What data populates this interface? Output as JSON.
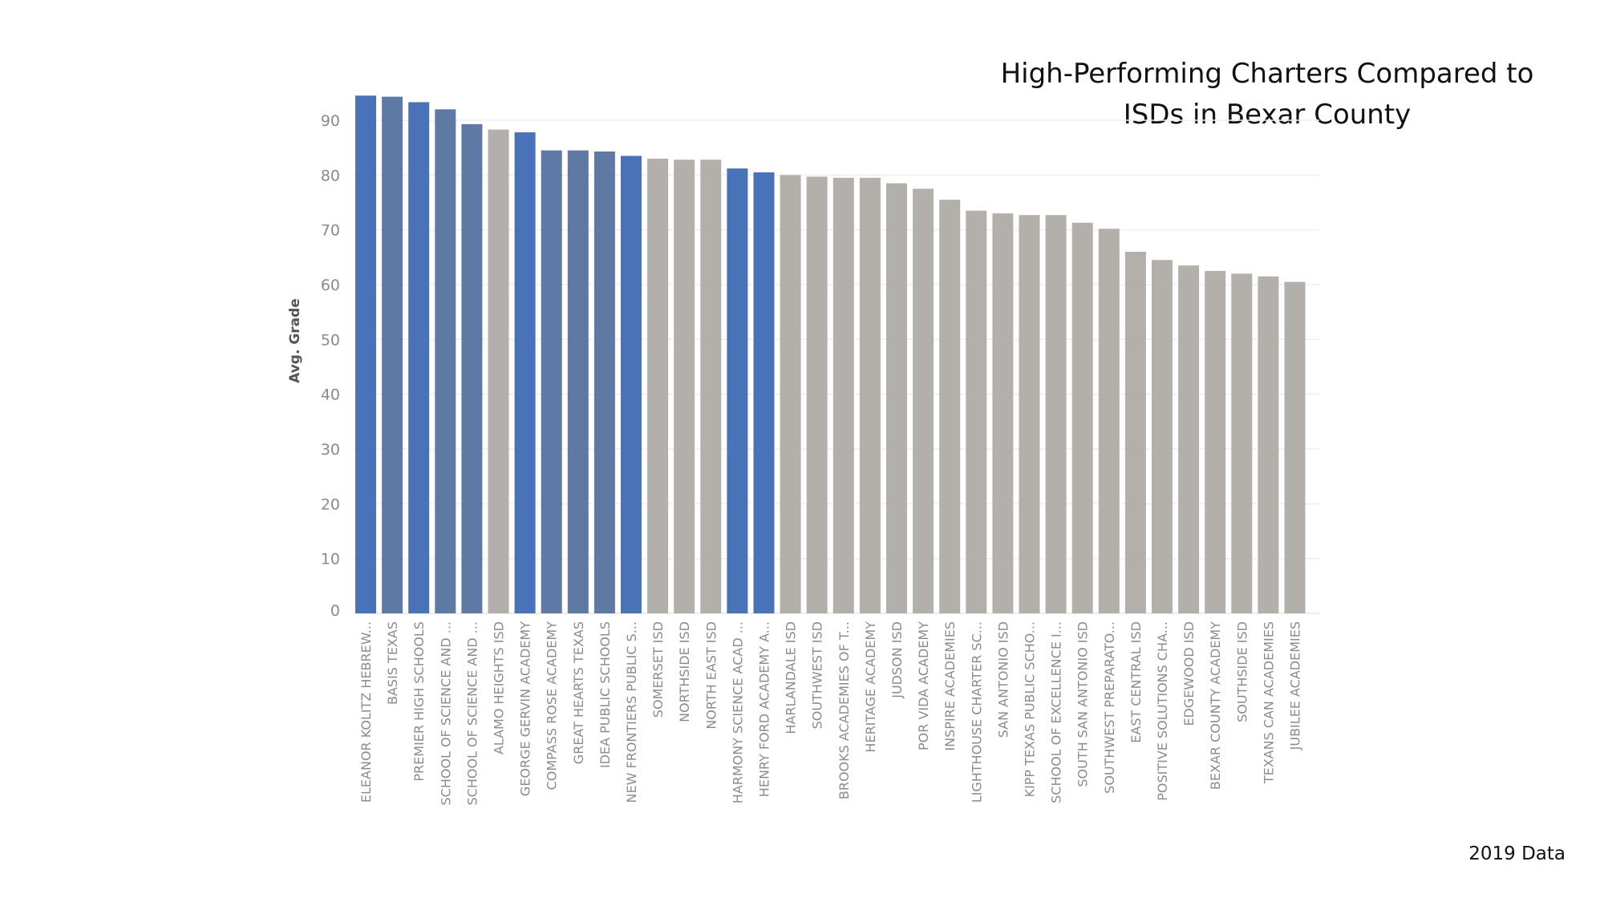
{
  "title_line1": "High-Performing Charters Compared to",
  "title_line2": "ISDs in Bexar County",
  "footnote": "2019 Data",
  "colors": {
    "highlight_blue": "#4a72b8",
    "highlight_slate": "#5e79a4",
    "other_gray": "#b3afab",
    "grid": "#eeeeee"
  },
  "chart_data": {
    "type": "bar",
    "ylabel": "Avg. Grade",
    "xlabel": "",
    "ylim": [
      0,
      95
    ],
    "yticks": [
      0,
      10,
      20,
      30,
      40,
      50,
      60,
      70,
      80,
      90
    ],
    "grid": "horizontal",
    "categories": [
      "ELEANOR KOLITZ HEBREW...",
      "BASIS TEXAS",
      "PREMIER HIGH SCHOOLS",
      "SCHOOL OF SCIENCE AND ...",
      "SCHOOL OF SCIENCE AND ...",
      "ALAMO HEIGHTS ISD",
      "GEORGE GERVIN ACADEMY",
      "COMPASS ROSE ACADEMY",
      "GREAT HEARTS TEXAS",
      "IDEA PUBLIC SCHOOLS",
      "NEW FRONTIERS PUBLIC S...",
      "SOMERSET ISD",
      "NORTHSIDE ISD",
      "NORTH EAST ISD",
      "HARMONY SCIENCE ACAD ...",
      "HENRY FORD ACADEMY A...",
      "HARLANDALE ISD",
      "SOUTHWEST ISD",
      "BROOKS ACADEMIES OF T...",
      "HERITAGE ACADEMY",
      "JUDSON ISD",
      "POR VIDA ACADEMY",
      "INSPIRE ACADEMIES",
      "LIGHTHOUSE CHARTER SC...",
      "SAN ANTONIO ISD",
      "KIPP TEXAS PUBLIC SCHO...",
      "SCHOOL OF EXCELLENCE I...",
      "SOUTH SAN ANTONIO ISD",
      "SOUTHWEST PREPARATO...",
      "EAST CENTRAL ISD",
      "POSITIVE SOLUTIONS CHA...",
      "EDGEWOOD ISD",
      "BEXAR COUNTY ACADEMY",
      "SOUTHSIDE ISD",
      "TEXANS CAN ACADEMIES",
      "JUBILEE ACADEMIES"
    ],
    "values": [
      94.5,
      94.3,
      93.3,
      92.0,
      89.3,
      88.3,
      87.8,
      84.5,
      84.5,
      84.3,
      83.5,
      83.0,
      82.8,
      82.8,
      81.2,
      80.5,
      80.0,
      79.7,
      79.5,
      79.5,
      78.5,
      77.5,
      75.5,
      73.5,
      73.0,
      72.7,
      72.7,
      71.3,
      70.2,
      66.0,
      64.5,
      63.5,
      62.5,
      62.0,
      61.5,
      60.5
    ],
    "bar_color_keys": [
      "highlight_blue",
      "highlight_slate",
      "highlight_blue",
      "highlight_slate",
      "highlight_slate",
      "other_gray",
      "highlight_blue",
      "highlight_slate",
      "highlight_slate",
      "highlight_slate",
      "highlight_blue",
      "other_gray",
      "other_gray",
      "other_gray",
      "highlight_blue",
      "highlight_blue",
      "other_gray",
      "other_gray",
      "other_gray",
      "other_gray",
      "other_gray",
      "other_gray",
      "other_gray",
      "other_gray",
      "other_gray",
      "other_gray",
      "other_gray",
      "other_gray",
      "other_gray",
      "other_gray",
      "other_gray",
      "other_gray",
      "other_gray",
      "other_gray",
      "other_gray",
      "other_gray"
    ]
  }
}
